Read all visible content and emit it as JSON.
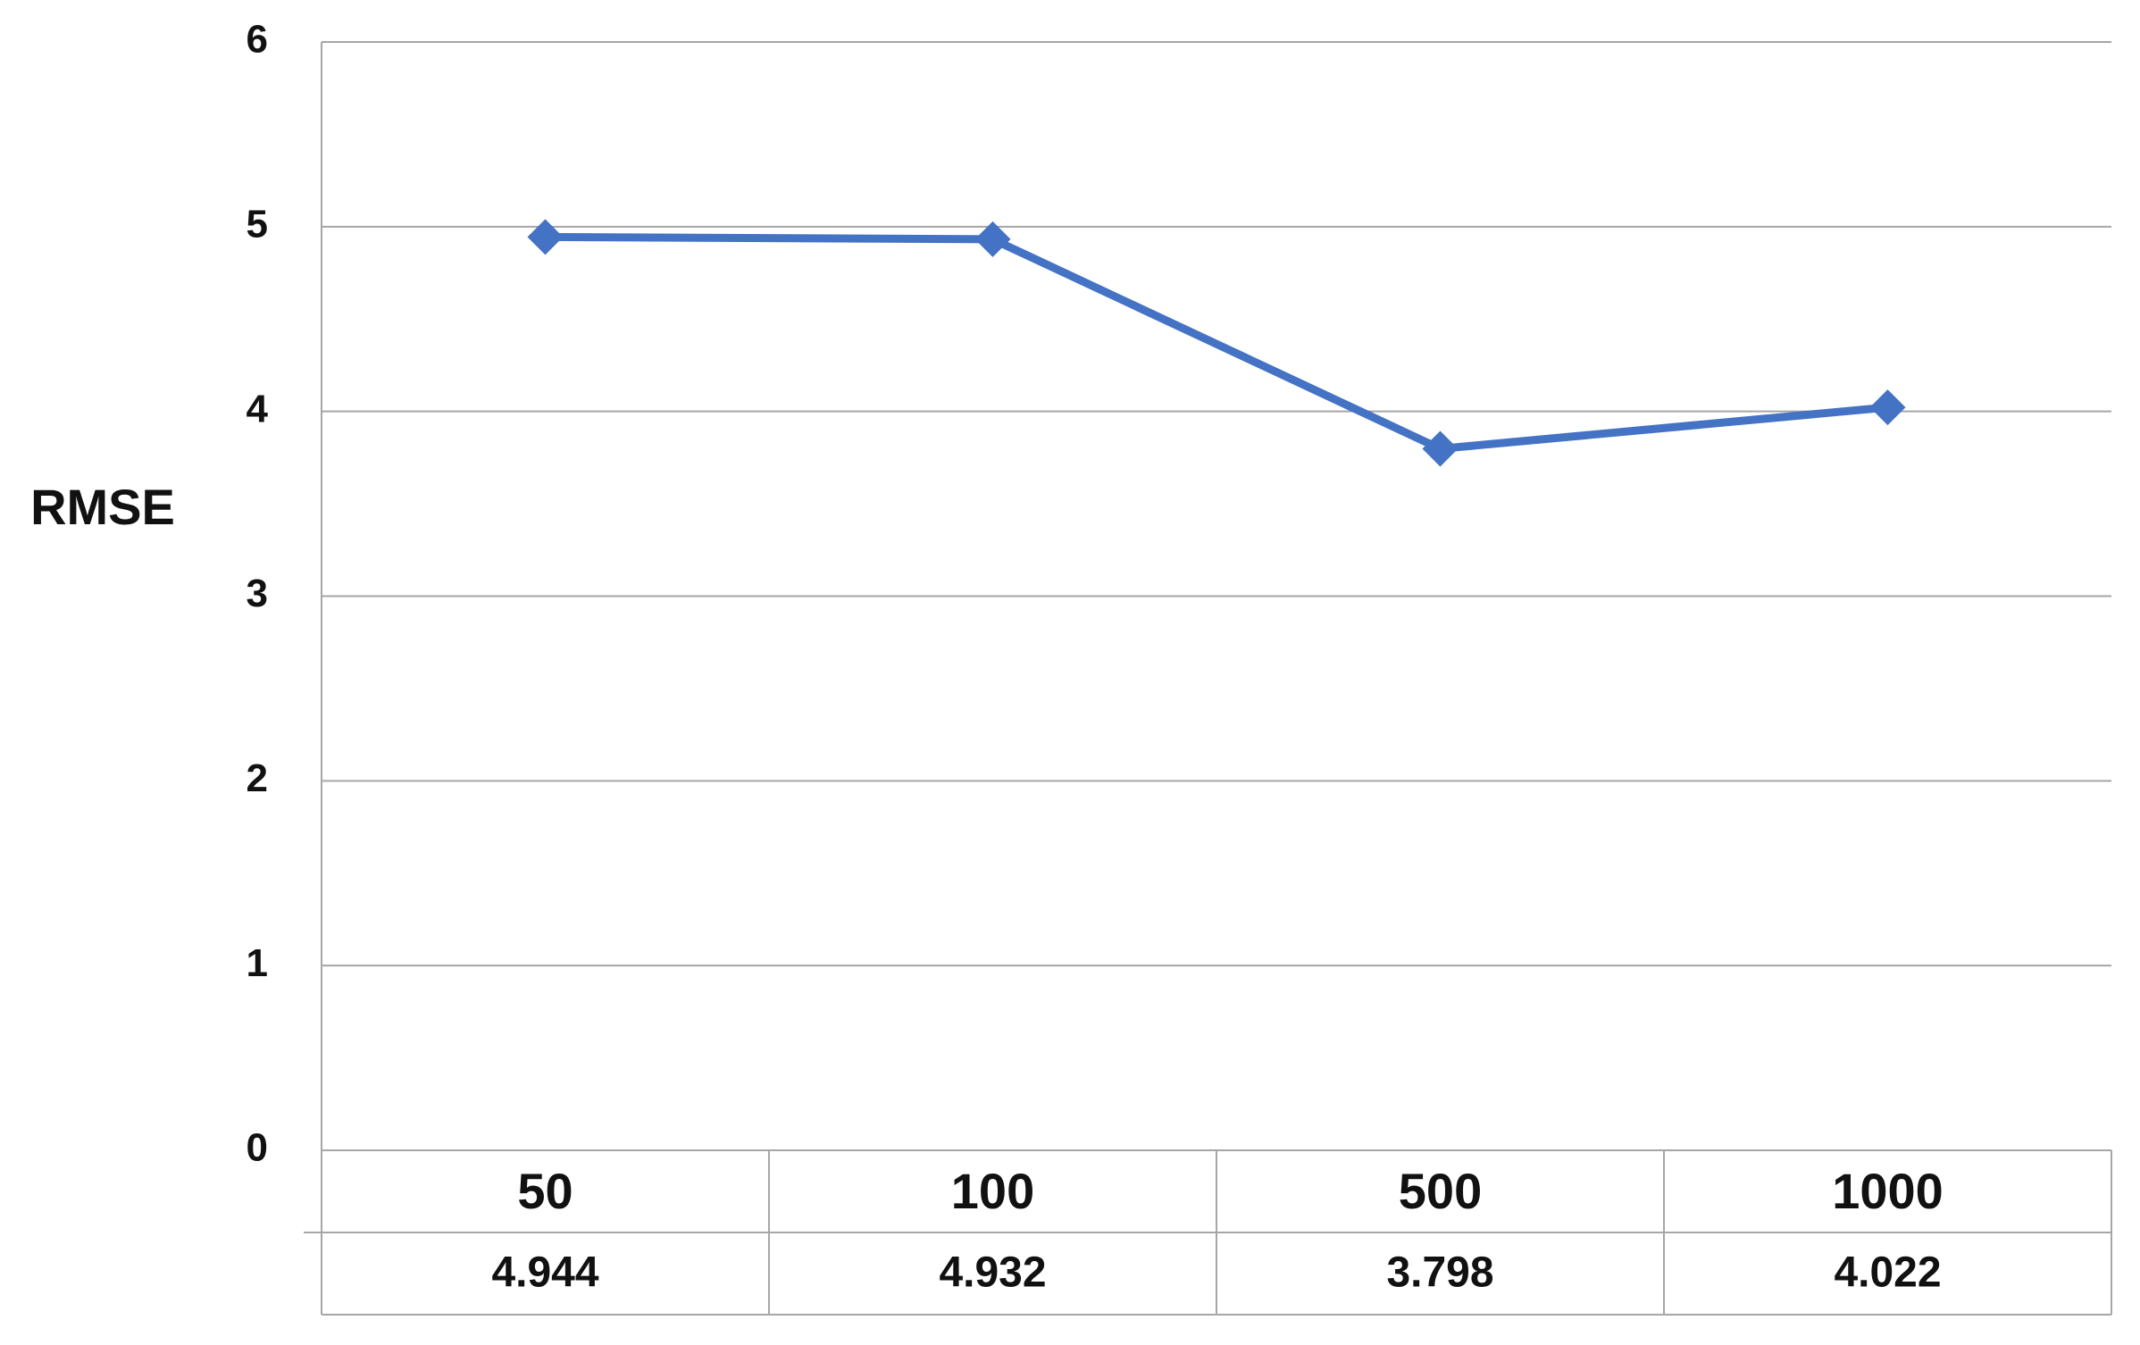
{
  "chart_data": {
    "type": "line",
    "y_label": "RMSE",
    "categories": [
      "50",
      "100",
      "500",
      "1000"
    ],
    "series": [
      {
        "name": "RMSE",
        "color": "#4472c4",
        "values": [
          4.944,
          4.932,
          3.798,
          4.022
        ]
      }
    ],
    "ylim": [
      0,
      6
    ],
    "yticks": [
      0,
      1,
      2,
      3,
      4,
      5,
      6
    ],
    "grid": true,
    "marker": "diamond",
    "data_table": true
  }
}
